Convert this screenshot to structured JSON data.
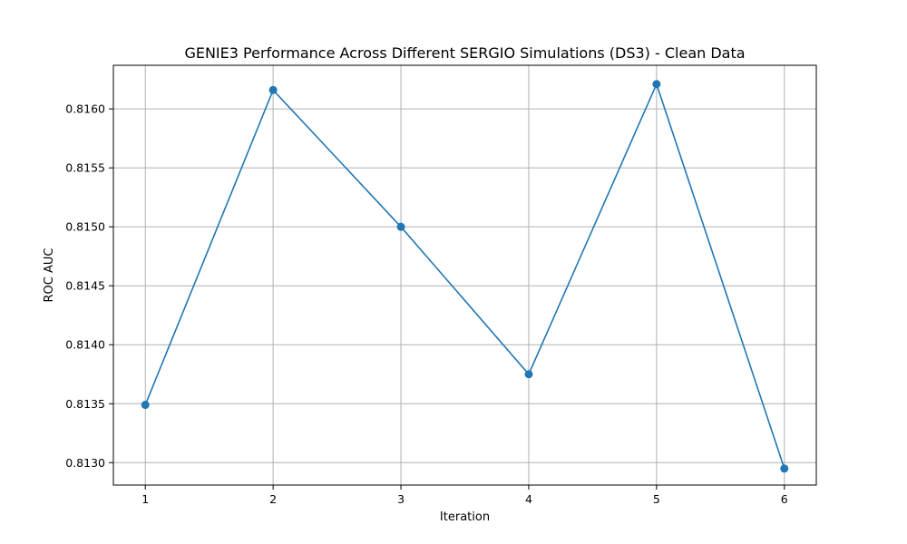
{
  "chart_data": {
    "type": "line",
    "title": "GENIE3 Performance Across Different SERGIO Simulations (DS3) - Clean Data",
    "xlabel": "Iteration",
    "ylabel": "ROC AUC",
    "x": [
      1,
      2,
      3,
      4,
      5,
      6
    ],
    "series": [
      {
        "values": [
          0.81349,
          0.81616,
          0.815,
          0.81375,
          0.81621,
          0.81295
        ],
        "color": "#1f77b4",
        "marker": "circle"
      }
    ],
    "x_ticks": [
      "1",
      "2",
      "3",
      "4",
      "5",
      "6"
    ],
    "y_ticks": [
      "0.8130",
      "0.8135",
      "0.8140",
      "0.8145",
      "0.8150",
      "0.8155",
      "0.8160"
    ],
    "xlim": [
      0.75,
      6.25
    ],
    "ylim": [
      0.81281,
      0.81637
    ],
    "grid": true,
    "grid_color": "#b0b0b0"
  }
}
